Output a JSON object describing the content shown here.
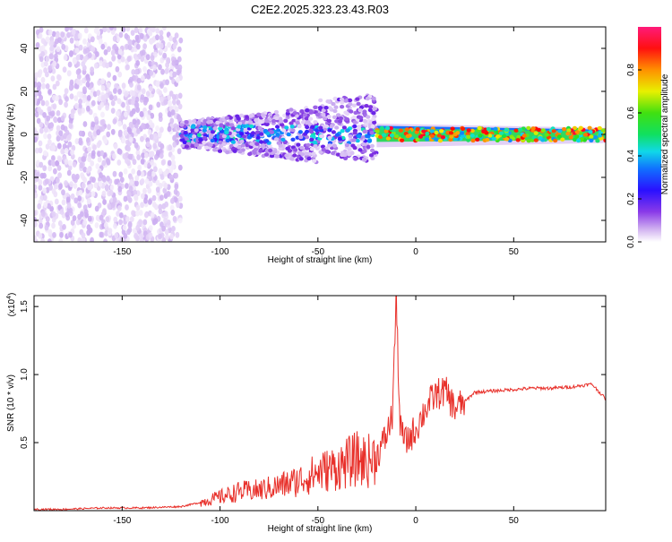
{
  "title": "C2E2.2025.323.23.43.R03",
  "chart_data": [
    {
      "type": "heatmap",
      "description_visible": "spectrogram",
      "xlabel": "Height of straight line (km)",
      "ylabel": "Frequency (Hz)",
      "xlim": [
        -195,
        97
      ],
      "ylim": [
        -50,
        50
      ],
      "x_ticks": [
        -150,
        -100,
        -50,
        0,
        50
      ],
      "x_tick_labels": [
        "-150",
        "-100",
        "-50",
        "0",
        "50"
      ],
      "y_ticks": [
        40,
        20,
        0,
        -20,
        -40
      ],
      "y_tick_labels": [
        "40",
        "20",
        "0",
        "-20",
        "-40"
      ],
      "colorbar": {
        "label": "Normalized spectral amplitude",
        "range": [
          0.0,
          1.0
        ],
        "ticks": [
          0.0,
          0.2,
          0.4,
          0.6,
          0.8
        ],
        "tick_labels": [
          "0.0",
          "0.2",
          "0.4",
          "0.6",
          "0.8"
        ],
        "colormap": [
          "#ffffff",
          "#e8d8f8",
          "#c8a8f0",
          "#7a2be0",
          "#3a10ff",
          "#1080ff",
          "#10e0e0",
          "#20e020",
          "#f0f000",
          "#ff8000",
          "#ff0000",
          "#ff1a7a"
        ]
      },
      "regions": [
        {
          "x_range": [
            -195,
            -120
          ],
          "freq_spread": 50,
          "amplitude": 0.12,
          "note": "scattered noise"
        },
        {
          "x_range": [
            -120,
            -20
          ],
          "freq_spread": 12,
          "amplitude": 0.3,
          "note": "turbulent band"
        },
        {
          "x_range": [
            -20,
            97
          ],
          "freq_spread": 3,
          "amplitude": 0.6,
          "note": "narrow band near 0 Hz"
        }
      ]
    },
    {
      "type": "line",
      "xlabel": "Height of straight line (km)",
      "ylabel": "SNR (10 * v/v)",
      "y_multiplier_label": "(x10",
      "y_multiplier_exp": "4",
      "y_multiplier_close": ")",
      "xlim": [
        -195,
        97
      ],
      "ylim": [
        0,
        1.58
      ],
      "x_ticks": [
        -150,
        -100,
        -50,
        0,
        50
      ],
      "x_tick_labels": [
        "-150",
        "-100",
        "-50",
        "0",
        "50"
      ],
      "y_ticks": [
        0.5,
        1.0,
        1.5
      ],
      "y_tick_labels": [
        "0.5",
        "1.0",
        "1.5"
      ],
      "color": "#e8302a",
      "x": [
        -195,
        -180,
        -160,
        -140,
        -120,
        -110,
        -100,
        -90,
        -80,
        -70,
        -60,
        -50,
        -45,
        -40,
        -35,
        -30,
        -25,
        -20,
        -15,
        -12,
        -10,
        -8,
        -5,
        0,
        5,
        10,
        15,
        20,
        25,
        30,
        40,
        50,
        60,
        70,
        80,
        90,
        97
      ],
      "y": [
        0.01,
        0.01,
        0.02,
        0.02,
        0.03,
        0.06,
        0.1,
        0.14,
        0.15,
        0.18,
        0.22,
        0.28,
        0.3,
        0.32,
        0.35,
        0.38,
        0.36,
        0.4,
        0.55,
        0.7,
        1.58,
        0.6,
        0.5,
        0.6,
        0.75,
        0.85,
        0.88,
        0.75,
        0.8,
        0.87,
        0.88,
        0.89,
        0.9,
        0.9,
        0.91,
        0.93,
        0.82
      ]
    }
  ]
}
